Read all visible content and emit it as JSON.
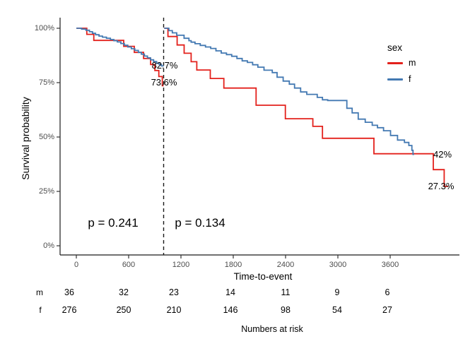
{
  "axes": {
    "y_title": "Survival probability",
    "x_title": "Time-to-event",
    "y_ticks": [
      "100%",
      "75%",
      "50%",
      "25%",
      "0%"
    ],
    "x_ticks": [
      "0",
      "600",
      "1200",
      "1800",
      "2400",
      "3000",
      "3600"
    ]
  },
  "legend": {
    "title": "sex",
    "items": [
      {
        "label": "m",
        "color": "#E3211C"
      },
      {
        "label": "f",
        "color": "#4379B2"
      }
    ]
  },
  "annotations": {
    "landmark_upper": "82.7%",
    "landmark_lower": "73.6%",
    "end_upper": "42%",
    "end_lower": "27.3%",
    "p_left": "p = 0.241",
    "p_right": "p = 0.134"
  },
  "risk_table": {
    "caption": "Numbers at risk",
    "rows": [
      {
        "label": "m",
        "values": [
          "36",
          "32",
          "23",
          "14",
          "11",
          "9",
          "6"
        ]
      },
      {
        "label": "f",
        "values": [
          "276",
          "250",
          "210",
          "146",
          "98",
          "54",
          "27"
        ]
      }
    ]
  },
  "chart_data": {
    "type": "line",
    "subtype": "kaplan-meier-step",
    "title": "",
    "xlabel": "Time-to-event",
    "ylabel": "Survival probability",
    "xlim": [
      0,
      4400
    ],
    "x_tick_values": [
      0,
      600,
      1200,
      1800,
      2400,
      3000,
      3600
    ],
    "ylim_pct": [
      0,
      100
    ],
    "y_tick_values_pct": [
      0,
      25,
      50,
      75,
      100
    ],
    "grid": false,
    "legend_position": "right",
    "landmark_x": 1000,
    "p_values": [
      {
        "text": "p = 0.241",
        "region": "before landmark"
      },
      {
        "text": "p = 0.134",
        "region": "after landmark"
      }
    ],
    "survival_labels": [
      {
        "series": "f",
        "x": 1000,
        "pct": 82.7
      },
      {
        "series": "m",
        "x": 1000,
        "pct": 73.6
      },
      {
        "series": "f",
        "x": 3870,
        "pct": 42.0
      },
      {
        "series": "m",
        "x": 4215,
        "pct": 27.3
      }
    ],
    "series": [
      {
        "name": "m",
        "color": "#E3211C",
        "segments": [
          [
            [
              0,
              100
            ],
            [
              120,
              97.2
            ],
            [
              200,
              94.4
            ],
            [
              543,
              91.7
            ],
            [
              664,
              88.9
            ],
            [
              770,
              86.1
            ],
            [
              851,
              83.3
            ],
            [
              900,
              80.6
            ],
            [
              945,
              77.8
            ],
            [
              985,
              73.6
            ],
            [
              1000,
              73.6
            ]
          ],
          [
            [
              1007,
              100
            ],
            [
              1050,
              96.2
            ],
            [
              1155,
              92.3
            ],
            [
              1235,
              88.5
            ],
            [
              1315,
              84.6
            ],
            [
              1380,
              80.8
            ],
            [
              1535,
              76.9
            ],
            [
              1690,
              72.5
            ],
            [
              2060,
              64.6
            ],
            [
              2395,
              58.4
            ],
            [
              2710,
              54.9
            ],
            [
              2820,
              49.4
            ],
            [
              3410,
              42.3
            ],
            [
              4090,
              35.0
            ],
            [
              4215,
              27.3
            ],
            [
              4260,
              27.3
            ]
          ]
        ]
      },
      {
        "name": "f",
        "color": "#4379B2",
        "segments": [
          [
            [
              0,
              100
            ],
            [
              60,
              99.6
            ],
            [
              110,
              99.1
            ],
            [
              150,
              98.4
            ],
            [
              185,
              97.7
            ],
            [
              220,
              97.0
            ],
            [
              260,
              96.4
            ],
            [
              300,
              95.9
            ],
            [
              345,
              95.4
            ],
            [
              390,
              94.8
            ],
            [
              430,
              94.3
            ],
            [
              470,
              93.7
            ],
            [
              510,
              93.0
            ],
            [
              550,
              92.2
            ],
            [
              590,
              91.4
            ],
            [
              630,
              90.6
            ],
            [
              670,
              89.8
            ],
            [
              710,
              88.9
            ],
            [
              745,
              88.1
            ],
            [
              780,
              87.2
            ],
            [
              815,
              86.4
            ],
            [
              850,
              85.5
            ],
            [
              885,
              84.7
            ],
            [
              920,
              83.9
            ],
            [
              950,
              83.3
            ],
            [
              975,
              82.7
            ],
            [
              1000,
              82.7
            ]
          ],
          [
            [
              1007,
              100
            ],
            [
              1060,
              98.9
            ],
            [
              1100,
              97.9
            ],
            [
              1150,
              96.8
            ],
            [
              1234,
              95.4
            ],
            [
              1290,
              94.3
            ],
            [
              1315,
              93.6
            ],
            [
              1360,
              92.9
            ],
            [
              1420,
              92.1
            ],
            [
              1480,
              91.4
            ],
            [
              1540,
              90.7
            ],
            [
              1600,
              89.6
            ],
            [
              1660,
              88.6
            ],
            [
              1720,
              87.9
            ],
            [
              1780,
              87.1
            ],
            [
              1840,
              86.1
            ],
            [
              1900,
              85.0
            ],
            [
              1960,
              84.3
            ],
            [
              2020,
              83.2
            ],
            [
              2080,
              82.1
            ],
            [
              2150,
              80.7
            ],
            [
              2245,
              79.6
            ],
            [
              2300,
              77.5
            ],
            [
              2370,
              75.7
            ],
            [
              2440,
              74.3
            ],
            [
              2500,
              72.5
            ],
            [
              2570,
              70.7
            ],
            [
              2640,
              69.6
            ],
            [
              2760,
              68.2
            ],
            [
              2820,
              67.1
            ],
            [
              2880,
              66.8
            ],
            [
              3100,
              63.2
            ],
            [
              3160,
              61.1
            ],
            [
              3230,
              58.2
            ],
            [
              3310,
              56.8
            ],
            [
              3390,
              55.4
            ],
            [
              3450,
              54.3
            ],
            [
              3520,
              52.9
            ],
            [
              3600,
              50.7
            ],
            [
              3680,
              48.6
            ],
            [
              3760,
              47.5
            ],
            [
              3810,
              46.1
            ],
            [
              3845,
              43.9
            ],
            [
              3858,
              42.0
            ],
            [
              3870,
              42.0
            ]
          ]
        ]
      }
    ],
    "numbers_at_risk": {
      "times": [
        0,
        600,
        1200,
        1800,
        2400,
        3000,
        3600
      ],
      "m": [
        36,
        32,
        23,
        14,
        11,
        9,
        6
      ],
      "f": [
        276,
        250,
        210,
        146,
        98,
        54,
        27
      ]
    }
  }
}
